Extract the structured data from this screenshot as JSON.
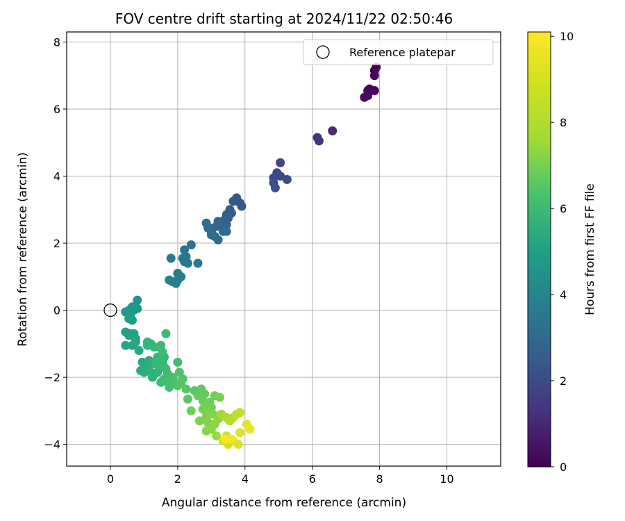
{
  "chart_data": {
    "type": "scatter",
    "title": "FOV centre drift starting at 2024/11/22 02:50:46",
    "xlabel": "Angular distance from reference (arcmin)",
    "ylabel": "Rotation from reference (arcmin)",
    "xlim": [
      -1.3,
      11.6
    ],
    "ylim": [
      -4.65,
      8.3
    ],
    "xticks": [
      0,
      2,
      4,
      6,
      8,
      10
    ],
    "yticks": [
      -4,
      -2,
      0,
      2,
      4,
      6,
      8
    ],
    "grid": true,
    "legend": {
      "placement": "top-right",
      "entries": [
        "Reference platepar"
      ]
    },
    "reference_point": {
      "x": 0,
      "y": 0
    },
    "colorbar": {
      "label": "Hours from first FF file",
      "range": [
        0,
        10.1
      ],
      "ticks": [
        0,
        2,
        4,
        6,
        8,
        10
      ],
      "colormap": "viridis"
    },
    "series": [
      {
        "points": [
          [
            7.9,
            7.25,
            0.05
          ],
          [
            7.85,
            7.0,
            0.1
          ],
          [
            7.85,
            7.15,
            0.08
          ],
          [
            7.7,
            6.6,
            0.2
          ],
          [
            7.65,
            6.4,
            0.25
          ],
          [
            7.55,
            6.35,
            0.3
          ],
          [
            7.85,
            6.55,
            0.15
          ],
          [
            7.75,
            6.55,
            0.2
          ],
          [
            7.65,
            6.55,
            0.22
          ],
          [
            6.6,
            5.35,
            1.2
          ],
          [
            6.15,
            5.15,
            1.5
          ],
          [
            6.2,
            5.05,
            1.55
          ],
          [
            5.05,
            4.4,
            2.1
          ],
          [
            4.95,
            4.1,
            2.2
          ],
          [
            5.05,
            4.0,
            2.25
          ],
          [
            5.25,
            3.9,
            2.3
          ],
          [
            4.85,
            3.95,
            2.35
          ],
          [
            4.85,
            3.8,
            2.4
          ],
          [
            4.9,
            3.65,
            2.45
          ],
          [
            3.75,
            3.35,
            2.7
          ],
          [
            3.65,
            3.25,
            2.75
          ],
          [
            3.85,
            3.2,
            2.8
          ],
          [
            3.9,
            3.1,
            2.85
          ],
          [
            3.55,
            3.0,
            2.9
          ],
          [
            3.6,
            2.9,
            2.95
          ],
          [
            3.45,
            2.85,
            3.0
          ],
          [
            3.5,
            2.75,
            3.05
          ],
          [
            3.4,
            2.7,
            3.1
          ],
          [
            3.45,
            2.55,
            3.15
          ],
          [
            3.35,
            2.45,
            3.2
          ],
          [
            3.2,
            2.65,
            3.25
          ],
          [
            3.15,
            2.5,
            3.3
          ],
          [
            3.05,
            2.45,
            3.35
          ],
          [
            3.0,
            2.35,
            3.4
          ],
          [
            3.1,
            2.2,
            3.45
          ],
          [
            3.2,
            2.1,
            3.5
          ],
          [
            3.45,
            2.35,
            3.4
          ],
          [
            3.35,
            2.35,
            3.5
          ],
          [
            2.85,
            2.6,
            3.55
          ],
          [
            2.9,
            2.45,
            3.6
          ],
          [
            3.0,
            2.25,
            3.65
          ],
          [
            2.4,
            1.95,
            3.8
          ],
          [
            2.2,
            1.8,
            3.85
          ],
          [
            2.25,
            1.6,
            3.9
          ],
          [
            2.15,
            1.55,
            3.95
          ],
          [
            2.3,
            1.4,
            4.0
          ],
          [
            2.6,
            1.4,
            4.0
          ],
          [
            2.2,
            1.45,
            4.05
          ],
          [
            1.8,
            1.55,
            4.1
          ],
          [
            2.0,
            1.1,
            4.15
          ],
          [
            2.1,
            1.0,
            4.2
          ],
          [
            2.0,
            0.9,
            4.25
          ],
          [
            1.85,
            0.85,
            4.3
          ],
          [
            1.95,
            0.8,
            4.35
          ],
          [
            1.75,
            0.9,
            4.4
          ],
          [
            0.8,
            0.3,
            5.2
          ],
          [
            0.8,
            0.05,
            5.3
          ],
          [
            0.65,
            0.1,
            5.35
          ],
          [
            0.45,
            -0.05,
            5.4
          ],
          [
            0.55,
            0.0,
            5.45
          ],
          [
            0.7,
            0.0,
            5.5
          ],
          [
            0.6,
            -0.2,
            5.55
          ],
          [
            0.55,
            -0.25,
            5.6
          ],
          [
            0.65,
            -0.3,
            5.6
          ],
          [
            0.45,
            -0.65,
            5.7
          ],
          [
            0.6,
            -0.7,
            5.75
          ],
          [
            0.7,
            -0.7,
            5.8
          ],
          [
            0.55,
            -0.75,
            5.8
          ],
          [
            0.75,
            -0.85,
            5.85
          ],
          [
            0.75,
            -0.95,
            5.9
          ],
          [
            0.45,
            -1.05,
            5.95
          ],
          [
            0.65,
            -1.05,
            5.95
          ],
          [
            0.85,
            -1.2,
            6.0
          ],
          [
            0.95,
            -1.55,
            6.1
          ],
          [
            1.05,
            -1.65,
            6.15
          ],
          [
            0.9,
            -1.8,
            6.2
          ],
          [
            1.0,
            -1.85,
            6.25
          ],
          [
            1.15,
            -1.5,
            6.3
          ],
          [
            1.15,
            -1.75,
            6.35
          ],
          [
            1.2,
            -1.85,
            6.4
          ],
          [
            1.3,
            -1.9,
            6.45
          ],
          [
            1.25,
            -2.0,
            6.5
          ],
          [
            1.4,
            -1.85,
            6.55
          ],
          [
            1.3,
            -1.55,
            6.6
          ],
          [
            1.5,
            -1.6,
            6.65
          ],
          [
            1.6,
            -1.7,
            6.7
          ],
          [
            1.45,
            -1.7,
            6.75
          ],
          [
            1.4,
            -1.4,
            6.7
          ],
          [
            1.6,
            -1.4,
            6.75
          ],
          [
            1.55,
            -1.55,
            6.8
          ],
          [
            1.35,
            -1.6,
            6.8
          ],
          [
            1.1,
            -1.05,
            6.6
          ],
          [
            1.2,
            -1.0,
            6.65
          ],
          [
            1.1,
            -0.95,
            6.7
          ],
          [
            1.3,
            -1.1,
            6.75
          ],
          [
            1.45,
            -1.1,
            6.8
          ],
          [
            1.55,
            -1.25,
            6.85
          ],
          [
            1.5,
            -1.05,
            6.85
          ],
          [
            1.65,
            -1.75,
            6.9
          ],
          [
            1.7,
            -1.9,
            6.95
          ],
          [
            1.6,
            -2.05,
            7.0
          ],
          [
            1.5,
            -2.15,
            7.0
          ],
          [
            1.7,
            -2.15,
            7.05
          ],
          [
            1.75,
            -2.3,
            7.1
          ],
          [
            1.85,
            -2.0,
            7.1
          ],
          [
            1.9,
            -2.15,
            7.15
          ],
          [
            2.0,
            -2.25,
            7.2
          ],
          [
            2.0,
            -1.55,
            7.0
          ],
          [
            1.65,
            -0.7,
            6.9
          ],
          [
            2.05,
            -1.85,
            7.25
          ],
          [
            2.15,
            -2.05,
            7.3
          ],
          [
            2.1,
            -2.15,
            7.35
          ],
          [
            2.25,
            -2.35,
            7.4
          ],
          [
            2.5,
            -2.4,
            7.45
          ],
          [
            2.3,
            -2.65,
            7.5
          ],
          [
            2.7,
            -2.35,
            7.6
          ],
          [
            2.6,
            -2.55,
            7.65
          ],
          [
            2.8,
            -2.5,
            7.7
          ],
          [
            2.75,
            -2.7,
            7.75
          ],
          [
            2.85,
            -2.8,
            7.8
          ],
          [
            2.95,
            -2.75,
            7.85
          ],
          [
            3.1,
            -2.55,
            7.9
          ],
          [
            3.0,
            -2.9,
            7.9
          ],
          [
            2.75,
            -2.95,
            7.95
          ],
          [
            2.4,
            -3.0,
            7.9
          ],
          [
            3.25,
            -2.6,
            8.0
          ],
          [
            2.85,
            -3.05,
            8.0
          ],
          [
            2.95,
            -3.1,
            8.05
          ],
          [
            2.85,
            -3.2,
            8.1
          ],
          [
            2.65,
            -3.3,
            8.1
          ],
          [
            2.9,
            -3.35,
            8.15
          ],
          [
            3.05,
            -3.1,
            8.2
          ],
          [
            2.85,
            -3.6,
            8.25
          ],
          [
            3.0,
            -3.55,
            8.3
          ],
          [
            3.1,
            -3.4,
            8.35
          ],
          [
            3.2,
            -3.25,
            8.4
          ],
          [
            3.15,
            -3.75,
            8.6
          ],
          [
            3.3,
            -3.1,
            8.7
          ],
          [
            3.45,
            -3.2,
            8.8
          ],
          [
            3.55,
            -3.3,
            8.9
          ],
          [
            3.65,
            -3.2,
            9.0
          ],
          [
            3.75,
            -3.1,
            9.1
          ],
          [
            3.85,
            -3.05,
            9.2
          ],
          [
            3.45,
            -3.75,
            9.3
          ],
          [
            3.35,
            -3.9,
            9.35
          ],
          [
            3.55,
            -3.9,
            9.4
          ],
          [
            3.5,
            -4.0,
            9.45
          ],
          [
            3.65,
            -3.9,
            9.5
          ],
          [
            3.8,
            -4.0,
            9.55
          ],
          [
            3.85,
            -3.65,
            9.6
          ],
          [
            4.05,
            -3.4,
            9.7
          ],
          [
            4.15,
            -3.55,
            9.8
          ],
          [
            3.6,
            -3.85,
            9.9
          ],
          [
            3.4,
            -3.85,
            10.0
          ]
        ]
      }
    ]
  }
}
